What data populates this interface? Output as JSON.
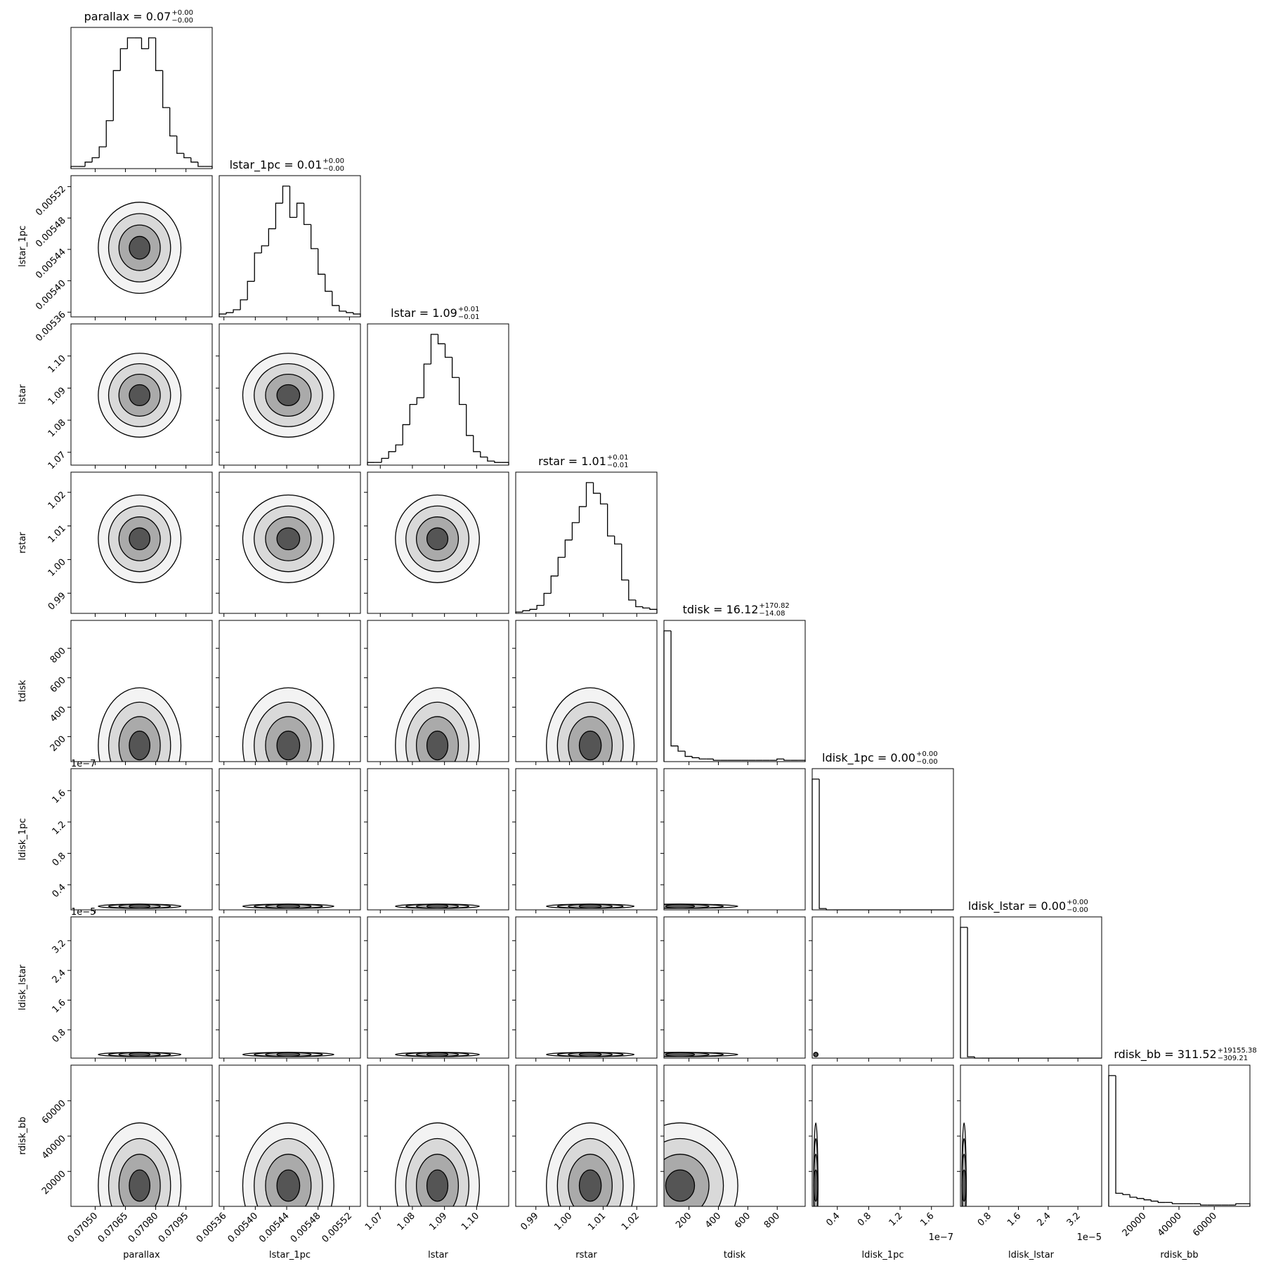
{
  "chart_data": {
    "type": "corner",
    "parameters": [
      {
        "name": "parallax",
        "title": "parallax = 0.07",
        "title_upper": "+0.00",
        "title_lower": "−0.00",
        "lim": [
          0.07038,
          0.07108
        ],
        "ticks": [
          {
            "value": 0.0705,
            "label": "0.07050"
          },
          {
            "value": 0.07065,
            "label": "0.07065"
          },
          {
            "value": 0.0708,
            "label": "0.07080"
          },
          {
            "value": 0.07095,
            "label": "0.07095"
          }
        ],
        "bins": [
          0.07038,
          0.070415,
          0.07045,
          0.070485,
          0.07052,
          0.070555,
          0.07059,
          0.070625,
          0.07066,
          0.070695,
          0.07073,
          0.070765,
          0.0708,
          0.070835,
          0.07087,
          0.070905,
          0.07094,
          0.070975,
          0.07101,
          0.071045,
          0.07108
        ],
        "counts": [
          1,
          1,
          3,
          5,
          10,
          22,
          45,
          55,
          60,
          60,
          55,
          60,
          45,
          28,
          15,
          7,
          5,
          3,
          1,
          1
        ]
      },
      {
        "name": "lstar_1pc",
        "title": "lstar_1pc = 0.01",
        "title_upper": "+0.00",
        "title_lower": "−0.00",
        "lim": [
          0.005354,
          0.005534
        ],
        "ticks": [
          {
            "value": 0.00536,
            "label": "0.00536"
          },
          {
            "value": 0.0054,
            "label": "0.00540"
          },
          {
            "value": 0.00544,
            "label": "0.00544"
          },
          {
            "value": 0.00548,
            "label": "0.00548"
          },
          {
            "value": 0.00552,
            "label": "0.00552"
          }
        ],
        "bins": [
          0.005354,
          0.005363,
          0.005372,
          0.005381,
          0.00539,
          0.005399,
          0.005408,
          0.005417,
          0.005426,
          0.005435,
          0.005444,
          0.005453,
          0.005462,
          0.005471,
          0.00548,
          0.005489,
          0.005498,
          0.005507,
          0.005516,
          0.005525,
          0.005534
        ],
        "counts": [
          2,
          3,
          5,
          12,
          25,
          45,
          50,
          62,
          80,
          92,
          70,
          80,
          65,
          48,
          30,
          18,
          8,
          4,
          3,
          2
        ]
      },
      {
        "name": "lstar",
        "title": "lstar = 1.09",
        "title_upper": "+0.01",
        "title_lower": "−0.01",
        "lim": [
          1.066,
          1.11
        ],
        "ticks": [
          1.07,
          1.08,
          1.09,
          {
            "value": 1.1,
            "label": "1.10"
          }
        ],
        "bins": [
          1.066,
          1.0682,
          1.0704,
          1.0726,
          1.0748,
          1.077,
          1.0792,
          1.0814,
          1.0836,
          1.0858,
          1.088,
          1.0902,
          1.0924,
          1.0946,
          1.0968,
          1.099,
          1.1012,
          1.1034,
          1.1056,
          1.1078,
          1.11
        ],
        "counts": [
          2,
          2,
          5,
          10,
          15,
          30,
          45,
          50,
          75,
          97,
          90,
          80,
          65,
          45,
          22,
          10,
          6,
          3,
          2,
          2
        ]
      },
      {
        "name": "rstar",
        "title": "rstar = 1.01",
        "title_upper": "+0.01",
        "title_lower": "−0.01",
        "lim": [
          0.984,
          1.026
        ],
        "ticks": [
          0.99,
          {
            "value": 1.0,
            "label": "1.00"
          },
          1.01,
          1.02
        ],
        "bins": [
          0.984,
          0.9861,
          0.9882,
          0.9903,
          0.9924,
          0.9945,
          0.9966,
          0.9987,
          1.0008,
          1.0029,
          1.005,
          1.0071,
          1.0092,
          1.0113,
          1.0134,
          1.0155,
          1.0176,
          1.0197,
          1.0218,
          1.0239,
          1.026
        ],
        "counts": [
          1,
          2,
          3,
          6,
          15,
          28,
          42,
          55,
          68,
          80,
          98,
          90,
          82,
          58,
          52,
          25,
          10,
          5,
          4,
          3
        ]
      },
      {
        "name": "tdisk",
        "title": "tdisk = 16.12",
        "title_upper": "+170.82",
        "title_lower": "−14.08",
        "lim": [
          30,
          990
        ],
        "ticks": [
          200,
          400,
          600,
          800
        ],
        "bins": [
          30,
          78,
          126,
          174,
          222,
          270,
          318,
          366,
          414,
          462,
          510,
          558,
          606,
          654,
          702,
          750,
          798,
          846,
          894,
          942,
          990
        ],
        "counts": [
          100,
          12,
          8,
          4,
          3,
          2,
          2,
          1,
          1,
          1,
          1,
          1,
          1,
          1,
          1,
          1,
          2,
          1,
          1,
          1
        ]
      },
      {
        "name": "ldisk_1pc",
        "title": "ldisk_1pc = 0.00",
        "title_upper": "+0.00",
        "title_lower": "−0.00",
        "offset": "1e−7",
        "lim": [
          0.08,
          1.88
        ],
        "ticks": [
          0.4,
          0.8,
          1.2,
          1.6
        ],
        "bins": [
          0.08,
          0.17,
          0.26,
          0.35,
          0.44,
          0.53,
          0.62,
          0.71,
          0.8,
          0.89,
          0.98,
          1.07,
          1.16,
          1.25,
          1.34,
          1.43,
          1.52,
          1.61,
          1.7,
          1.79,
          1.88
        ],
        "counts": [
          100,
          1,
          0,
          0,
          0,
          0,
          0,
          0,
          0,
          0,
          0,
          0,
          0,
          0,
          0,
          0,
          0,
          0,
          0,
          0
        ]
      },
      {
        "name": "ldisk_lstar",
        "title": "ldisk_lstar = 0.00",
        "title_upper": "+0.00",
        "title_lower": "−0.00",
        "offset": "1e−5",
        "lim": [
          0.04,
          3.84
        ],
        "ticks": [
          0.8,
          1.6,
          2.4,
          3.2
        ],
        "bins": [
          0.04,
          0.23,
          0.42,
          0.61,
          0.8,
          0.99,
          1.18,
          1.37,
          1.56,
          1.75,
          1.94,
          2.13,
          2.32,
          2.51,
          2.7,
          2.89,
          3.08,
          3.27,
          3.46,
          3.65,
          3.84
        ],
        "counts": [
          100,
          1,
          0,
          0,
          0,
          0,
          0,
          0,
          0,
          0,
          0,
          0,
          0,
          0,
          0,
          0,
          0,
          0,
          0,
          0
        ]
      },
      {
        "name": "rdisk_bb",
        "title": "rdisk_bb = 311.52",
        "title_upper": "+19155.38",
        "title_lower": "−309.21",
        "lim": [
          200,
          80200
        ],
        "ticks": [
          20000,
          40000,
          60000
        ],
        "bins": [
          200,
          4200,
          8200,
          12200,
          16200,
          20200,
          24200,
          28200,
          32200,
          36200,
          40200,
          44200,
          48200,
          52200,
          56200,
          60200,
          64200,
          68200,
          72200,
          76200,
          80200
        ],
        "counts": [
          100,
          10,
          9,
          7,
          6,
          5,
          4,
          3,
          3,
          2,
          2,
          2,
          2,
          1,
          1,
          1,
          1,
          1,
          2,
          2
        ]
      }
    ]
  }
}
